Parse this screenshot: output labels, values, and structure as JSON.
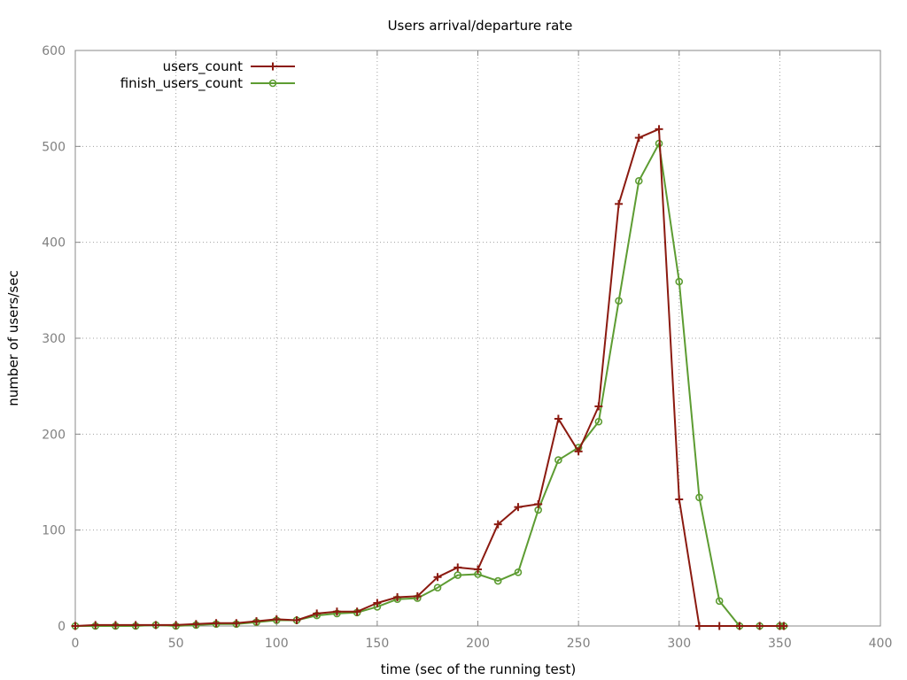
{
  "chart_data": {
    "type": "line",
    "title": "Users arrival/departure rate",
    "xlabel": "time (sec of the running test)",
    "ylabel": "number of users/sec",
    "xlim": [
      0,
      400
    ],
    "ylim": [
      0,
      600
    ],
    "xticks": [
      0,
      50,
      100,
      150,
      200,
      250,
      300,
      350,
      400
    ],
    "yticks": [
      0,
      100,
      200,
      300,
      400,
      500,
      600
    ],
    "grid": true,
    "legend_position": "top-left",
    "series": [
      {
        "name": "users_count",
        "color": "#8b1a10",
        "marker": "plus",
        "points": [
          [
            0,
            0
          ],
          [
            10,
            1
          ],
          [
            20,
            1
          ],
          [
            30,
            1
          ],
          [
            40,
            1
          ],
          [
            50,
            1
          ],
          [
            60,
            2
          ],
          [
            70,
            3
          ],
          [
            80,
            3
          ],
          [
            90,
            5
          ],
          [
            100,
            7
          ],
          [
            110,
            6
          ],
          [
            120,
            13
          ],
          [
            130,
            15
          ],
          [
            140,
            15
          ],
          [
            150,
            24
          ],
          [
            160,
            30
          ],
          [
            170,
            31
          ],
          [
            180,
            51
          ],
          [
            190,
            61
          ],
          [
            200,
            59
          ],
          [
            210,
            106
          ],
          [
            220,
            124
          ],
          [
            230,
            127
          ],
          [
            240,
            216
          ],
          [
            250,
            182
          ],
          [
            260,
            229
          ],
          [
            270,
            440
          ],
          [
            280,
            509
          ],
          [
            290,
            518
          ],
          [
            300,
            132
          ],
          [
            310,
            0
          ],
          [
            320,
            0
          ],
          [
            330,
            0
          ],
          [
            340,
            0
          ],
          [
            350,
            0
          ],
          [
            352,
            0
          ]
        ]
      },
      {
        "name": "finish_users_count",
        "color": "#5d9c32",
        "marker": "circle",
        "points": [
          [
            0,
            0
          ],
          [
            10,
            0
          ],
          [
            20,
            0
          ],
          [
            30,
            0
          ],
          [
            40,
            1
          ],
          [
            50,
            0
          ],
          [
            60,
            1
          ],
          [
            70,
            2
          ],
          [
            80,
            2
          ],
          [
            90,
            4
          ],
          [
            100,
            6
          ],
          [
            110,
            6
          ],
          [
            120,
            11
          ],
          [
            130,
            13
          ],
          [
            140,
            14
          ],
          [
            150,
            20
          ],
          [
            160,
            28
          ],
          [
            170,
            29
          ],
          [
            180,
            40
          ],
          [
            190,
            53
          ],
          [
            200,
            54
          ],
          [
            210,
            47
          ],
          [
            220,
            56
          ],
          [
            230,
            121
          ],
          [
            240,
            173
          ],
          [
            250,
            186
          ],
          [
            260,
            213
          ],
          [
            270,
            339
          ],
          [
            280,
            464
          ],
          [
            290,
            503
          ],
          [
            300,
            359
          ],
          [
            310,
            134
          ],
          [
            320,
            26
          ],
          [
            330,
            0
          ],
          [
            340,
            0
          ],
          [
            350,
            0
          ],
          [
            352,
            0
          ]
        ]
      }
    ]
  }
}
